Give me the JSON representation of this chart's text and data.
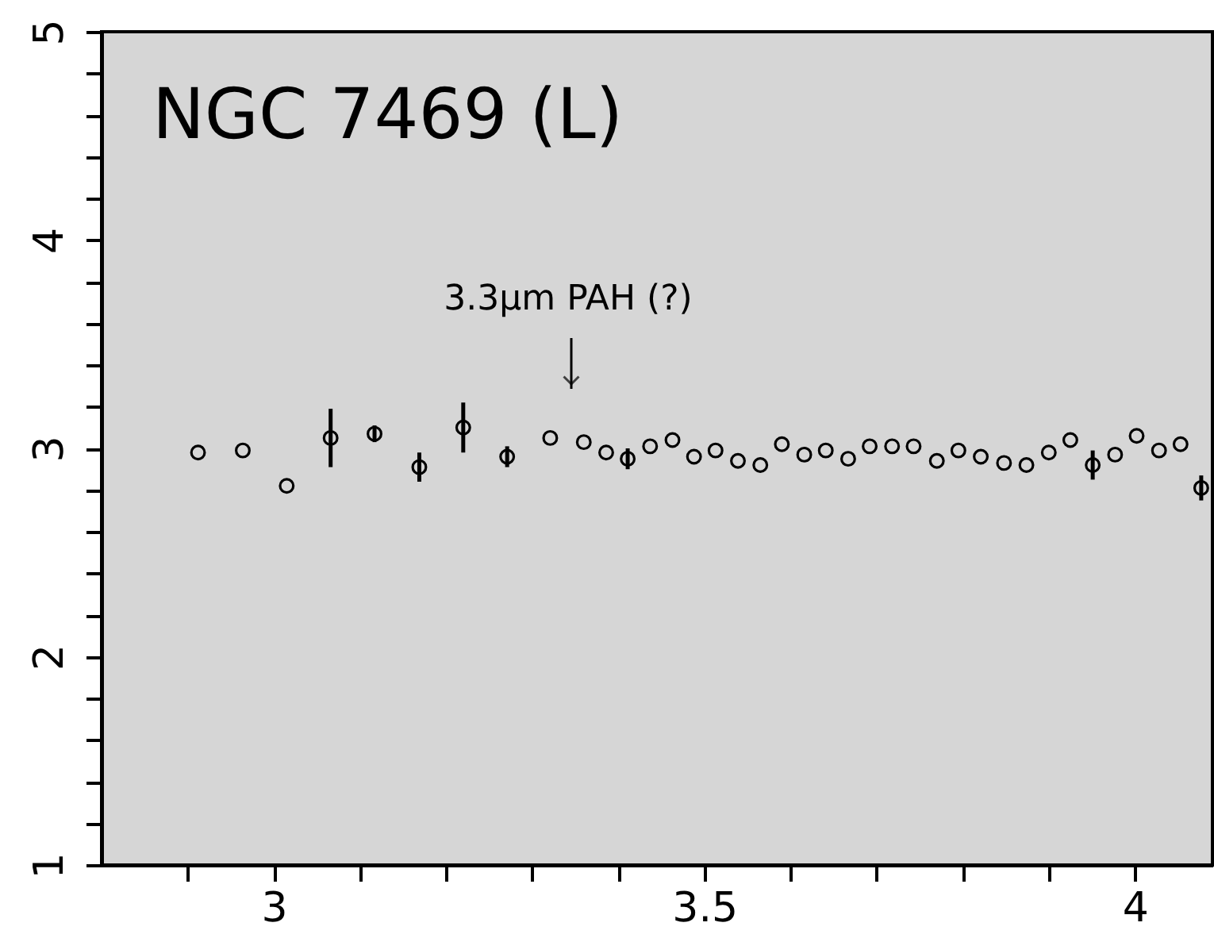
{
  "chart_data": {
    "type": "scatter",
    "title": "NGC 7469 (L)",
    "x": [
      2.912,
      2.964,
      3.015,
      3.066,
      3.117,
      3.169,
      3.22,
      3.271,
      3.321,
      3.36,
      3.386,
      3.411,
      3.437,
      3.463,
      3.488,
      3.513,
      3.539,
      3.565,
      3.59,
      3.616,
      3.641,
      3.667,
      3.692,
      3.718,
      3.743,
      3.77,
      3.795,
      3.821,
      3.848,
      3.874,
      3.9,
      3.925,
      3.951,
      3.977,
      4.002,
      4.028,
      4.053,
      4.077
    ],
    "values": [
      2.98,
      2.99,
      2.82,
      3.05,
      3.07,
      2.91,
      3.1,
      2.96,
      3.05,
      3.03,
      2.98,
      2.95,
      3.01,
      3.04,
      2.96,
      2.99,
      2.94,
      2.92,
      3.02,
      2.97,
      2.99,
      2.95,
      3.01,
      3.01,
      3.01,
      2.94,
      2.99,
      2.96,
      2.93,
      2.92,
      2.98,
      3.04,
      2.92,
      2.97,
      3.06,
      2.99,
      3.02,
      2.81
    ],
    "errors": [
      null,
      null,
      null,
      0.14,
      0.04,
      0.07,
      0.12,
      0.05,
      null,
      null,
      null,
      0.05,
      null,
      null,
      null,
      null,
      null,
      null,
      null,
      null,
      null,
      null,
      null,
      null,
      null,
      null,
      null,
      null,
      null,
      null,
      null,
      null,
      0.07,
      null,
      null,
      null,
      null,
      0.06
    ],
    "color": "#000000",
    "marker": "circle",
    "xlim": [
      2.8,
      4.09
    ],
    "xticks": [
      {
        "value": 2.9,
        "label": null
      },
      3,
      {
        "value": 3.1,
        "label": null
      },
      {
        "value": 3.2,
        "label": null
      },
      {
        "value": 3.3,
        "label": null
      },
      {
        "value": 3.4,
        "label": null
      },
      3.5,
      {
        "value": 3.6,
        "label": null
      },
      {
        "value": 3.7,
        "label": null
      },
      {
        "value": 3.8,
        "label": null
      },
      {
        "value": 3.9,
        "label": null
      },
      4
    ],
    "ylim": [
      1,
      5
    ],
    "yticks": [
      1,
      {
        "value": 1.2,
        "label": null
      },
      {
        "value": 1.4,
        "label": null
      },
      {
        "value": 1.6,
        "label": null
      },
      {
        "value": 1.8,
        "label": null
      },
      2,
      {
        "value": 2.2,
        "label": null
      },
      {
        "value": 2.4,
        "label": null
      },
      {
        "value": 2.6,
        "label": null
      },
      {
        "value": 2.8,
        "label": null
      },
      3,
      {
        "value": 3.2,
        "label": null
      },
      {
        "value": 3.4,
        "label": null
      },
      {
        "value": 3.6,
        "label": null
      },
      {
        "value": 3.8,
        "label": null
      },
      4,
      {
        "value": 4.2,
        "label": null
      },
      {
        "value": 4.4,
        "label": null
      },
      {
        "value": 4.6,
        "label": null
      },
      {
        "value": 4.8,
        "label": null
      },
      5
    ],
    "grid": false,
    "legend": false,
    "annotations": [
      "3.3μm PAH (?)"
    ]
  }
}
